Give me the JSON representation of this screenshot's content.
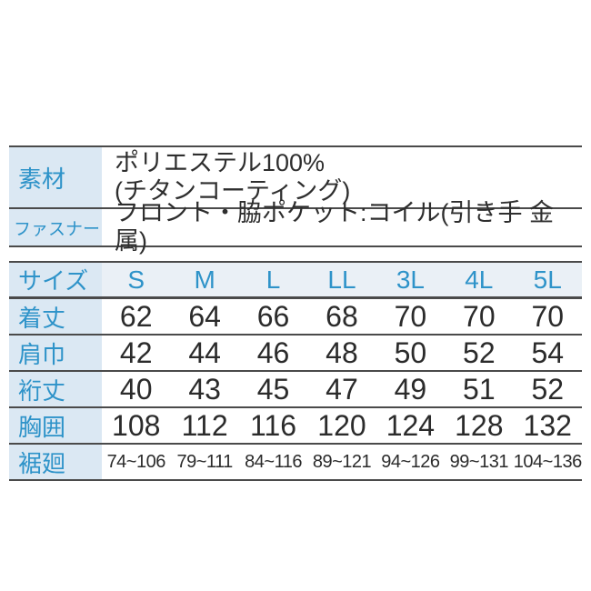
{
  "colors": {
    "accent_blue": "#2e93c9",
    "label_cell_bg": "#dbe8f3",
    "header_row_bg": "#eaf0f6",
    "rule_line": "#4a4a4a",
    "value_text": "#2b2b2b",
    "page_bg": "#ffffff"
  },
  "spec_table": {
    "rows": [
      {
        "label": "素材",
        "lines": [
          "ポリエステル100%",
          "(チタンコーティング)"
        ]
      },
      {
        "label": "ファスナー",
        "lines": [
          "フロント・脇ポケット:コイル(引き手 金属)"
        ]
      }
    ]
  },
  "size_table": {
    "header_label": "サイズ",
    "sizes": [
      "S",
      "M",
      "L",
      "LL",
      "3L",
      "4L",
      "5L"
    ],
    "rows": [
      {
        "label": "着丈",
        "values": [
          "62",
          "64",
          "66",
          "68",
          "70",
          "70",
          "70"
        ]
      },
      {
        "label": "肩巾",
        "values": [
          "42",
          "44",
          "46",
          "48",
          "50",
          "52",
          "54"
        ]
      },
      {
        "label": "裄丈",
        "values": [
          "40",
          "43",
          "45",
          "47",
          "49",
          "51",
          "52"
        ]
      },
      {
        "label": "胸囲",
        "values": [
          "108",
          "112",
          "116",
          "120",
          "124",
          "128",
          "132"
        ]
      },
      {
        "label": "裾廻",
        "values": [
          "74~106",
          "79~111",
          "84~116",
          "89~121",
          "94~126",
          "99~131",
          "104~136"
        ]
      }
    ]
  }
}
